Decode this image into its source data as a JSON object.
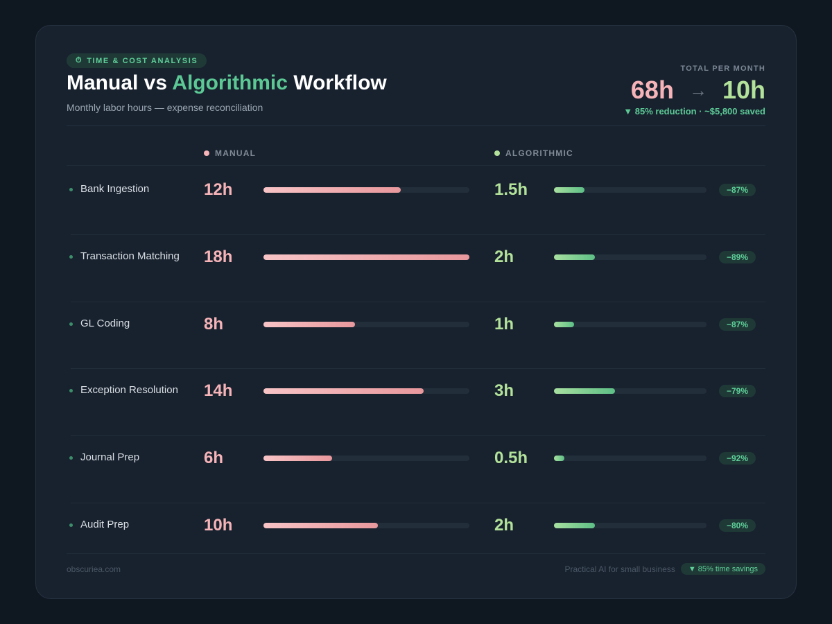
{
  "header": {
    "badge_icon": "⏱",
    "badge": "TIME & COST ANALYSIS",
    "title_part1": "Manual vs ",
    "title_accent": "Algorithmic",
    "title_part2": " Workflow",
    "subtitle": "Monthly labor hours — expense reconciliation"
  },
  "totals": {
    "label": "TOTAL PER MONTH",
    "manual": "68h",
    "arrow": "→",
    "algorithmic": "10h",
    "note": "▼ 85% reduction · ~$5,800 saved"
  },
  "columns": {
    "manual": "MANUAL",
    "algorithmic": "ALGORITHMIC"
  },
  "colors": {
    "manual": "#f6b4b8",
    "algorithmic": "#b3e29a",
    "accent": "#5cc995",
    "card": "#18222f",
    "background": "#0f1720"
  },
  "chart_data": {
    "type": "bar",
    "orientation": "horizontal",
    "unit": "h",
    "categories": [
      "Bank Ingestion",
      "Transaction Matching",
      "GL Coding",
      "Exception Resolution",
      "Journal Prep",
      "Audit Prep"
    ],
    "series": [
      {
        "name": "MANUAL",
        "values": [
          12,
          18,
          8,
          14,
          6,
          10
        ],
        "max": 18
      },
      {
        "name": "ALGORITHMIC",
        "values": [
          1.5,
          2,
          1,
          3,
          0.5,
          2
        ],
        "max": 7.5
      }
    ],
    "value_labels": {
      "manual": [
        "12h",
        "18h",
        "8h",
        "14h",
        "6h",
        "10h"
      ],
      "algorithmic": [
        "1.5h",
        "2h",
        "1h",
        "3h",
        "0.5h",
        "2h"
      ]
    },
    "reduction_labels": [
      "−87%",
      "−89%",
      "−87%",
      "−79%",
      "−92%",
      "−80%"
    ]
  },
  "footer": {
    "site": "obscuriea.com",
    "tagline": "Practical AI for small business",
    "pill": "▼ 85% time savings"
  }
}
